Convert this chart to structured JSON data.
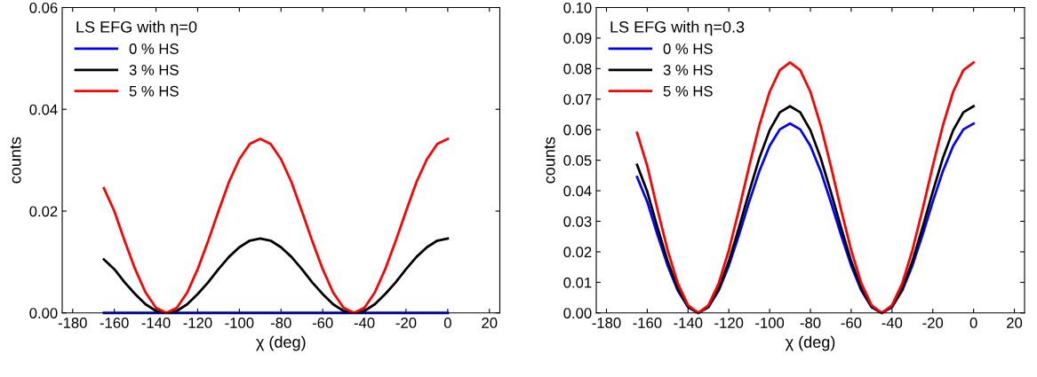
{
  "chart_data": [
    {
      "type": "line",
      "legend_title": "LS EFG with η=0",
      "xlabel": "χ (deg)",
      "ylabel": "counts",
      "legend": "top left",
      "grid": false,
      "x": [
        -165,
        -160,
        -155,
        -150,
        -145,
        -140,
        -135,
        -130,
        -125,
        -120,
        -115,
        -110,
        -105,
        -100,
        -95,
        -90,
        -85,
        -80,
        -75,
        -70,
        -65,
        -60,
        -55,
        -50,
        -45,
        -40,
        -35,
        -30,
        -25,
        -20,
        -15,
        -10,
        -5,
        0
      ],
      "xlim": [
        -185,
        25
      ],
      "xticks": [
        -180,
        -160,
        -140,
        -120,
        -100,
        -80,
        -60,
        -40,
        -20,
        0,
        20
      ],
      "ylim": [
        0,
        0.06
      ],
      "yticks": [
        {
          "value": 0,
          "label": "0.00"
        },
        {
          "value": 0.02,
          "label": "0.02"
        },
        {
          "value": 0.04,
          "label": "0.04"
        },
        {
          "value": 0.06,
          "label": "0.06"
        }
      ],
      "series": [
        {
          "name": "0 % HS",
          "color": "#0000ff",
          "values": [
            0,
            0,
            0,
            0,
            0,
            0,
            0,
            0,
            0,
            0,
            0,
            0,
            0,
            0,
            0,
            0,
            0,
            0,
            0,
            0,
            0,
            0,
            0,
            0,
            0,
            0,
            0,
            0,
            0,
            0,
            0,
            0,
            0,
            0
          ]
        },
        {
          "name": "3 % HS",
          "color": "#000000",
          "values": [
            0.0105,
            0.0086,
            0.006,
            0.0037,
            0.0017,
            0.0004,
            0,
            0.0004,
            0.0017,
            0.0037,
            0.006,
            0.0086,
            0.011,
            0.0129,
            0.0142,
            0.0146,
            0.0142,
            0.0129,
            0.011,
            0.0086,
            0.006,
            0.0037,
            0.0017,
            0.0004,
            0,
            0.0004,
            0.0017,
            0.0037,
            0.006,
            0.0086,
            0.011,
            0.0129,
            0.0142,
            0.0146
          ]
        },
        {
          "name": "5 % HS",
          "color": "#ff0000",
          "values": [
            0.0245,
            0.02,
            0.0141,
            0.0086,
            0.004,
            0.001,
            0,
            0.001,
            0.004,
            0.0086,
            0.0141,
            0.02,
            0.0257,
            0.0302,
            0.0332,
            0.0342,
            0.0332,
            0.0302,
            0.0257,
            0.02,
            0.0141,
            0.0086,
            0.004,
            0.001,
            0,
            0.001,
            0.004,
            0.0086,
            0.0141,
            0.02,
            0.0257,
            0.0302,
            0.0332,
            0.0342
          ]
        }
      ]
    },
    {
      "type": "line",
      "legend_title": "LS EFG with η=0.3",
      "xlabel": "χ (deg)",
      "ylabel": "counts",
      "legend": "top left",
      "grid": false,
      "x": [
        -165,
        -160,
        -155,
        -150,
        -145,
        -140,
        -135,
        -130,
        -125,
        -120,
        -115,
        -110,
        -105,
        -100,
        -95,
        -90,
        -85,
        -80,
        -75,
        -70,
        -65,
        -60,
        -55,
        -50,
        -45,
        -40,
        -35,
        -30,
        -25,
        -20,
        -15,
        -10,
        -5,
        0
      ],
      "xlim": [
        -185,
        25
      ],
      "xticks": [
        -180,
        -160,
        -140,
        -120,
        -100,
        -80,
        -60,
        -40,
        -20,
        0,
        20
      ],
      "ylim": [
        0,
        0.1
      ],
      "yticks": [
        {
          "value": 0,
          "label": "0.00"
        },
        {
          "value": 0.01,
          "label": "0.01"
        },
        {
          "value": 0.02,
          "label": "0.02"
        },
        {
          "value": 0.03,
          "label": "0.03"
        },
        {
          "value": 0.04,
          "label": "0.04"
        },
        {
          "value": 0.05,
          "label": "0.05"
        },
        {
          "value": 0.06,
          "label": "0.06"
        },
        {
          "value": 0.07,
          "label": "0.07"
        },
        {
          "value": 0.08,
          "label": "0.08"
        },
        {
          "value": 0.09,
          "label": "0.09"
        },
        {
          "value": 0.1,
          "label": "0.10"
        }
      ],
      "series": [
        {
          "name": "0 % HS",
          "color": "#0000ff",
          "values": [
            0.0445,
            0.0364,
            0.0256,
            0.0155,
            0.0073,
            0.0019,
            0,
            0.0019,
            0.0073,
            0.0155,
            0.0256,
            0.0364,
            0.0465,
            0.0547,
            0.0601,
            0.062,
            0.0601,
            0.0547,
            0.0465,
            0.0364,
            0.0256,
            0.0155,
            0.0073,
            0.0019,
            0,
            0.0019,
            0.0073,
            0.0155,
            0.0256,
            0.0364,
            0.0465,
            0.0547,
            0.0601,
            0.062
          ]
        },
        {
          "name": "3 % HS",
          "color": "#000000",
          "values": [
            0.0485,
            0.0397,
            0.028,
            0.0169,
            0.0079,
            0.002,
            0,
            0.002,
            0.0079,
            0.0169,
            0.028,
            0.0397,
            0.0508,
            0.0598,
            0.0657,
            0.0677,
            0.0657,
            0.0598,
            0.0508,
            0.0397,
            0.028,
            0.0169,
            0.0079,
            0.002,
            0,
            0.002,
            0.0079,
            0.0169,
            0.028,
            0.0397,
            0.0508,
            0.0598,
            0.0657,
            0.0677
          ]
        },
        {
          "name": "5 % HS",
          "color": "#ff0000",
          "values": [
            0.059,
            0.0481,
            0.0339,
            0.0205,
            0.0096,
            0.0025,
            0,
            0.0025,
            0.0096,
            0.0205,
            0.0339,
            0.0481,
            0.0615,
            0.0724,
            0.0795,
            0.082,
            0.0795,
            0.0724,
            0.0615,
            0.0481,
            0.0339,
            0.0205,
            0.0096,
            0.0025,
            0,
            0.0025,
            0.0096,
            0.0205,
            0.0339,
            0.0481,
            0.0615,
            0.0724,
            0.0795,
            0.082
          ]
        }
      ]
    }
  ]
}
